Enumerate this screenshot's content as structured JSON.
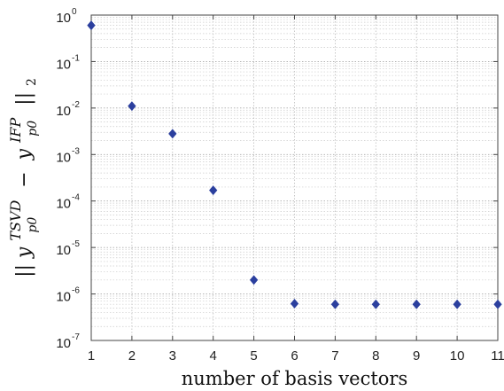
{
  "chart_data": {
    "type": "scatter",
    "x": [
      1,
      2,
      3,
      4,
      5,
      6,
      7,
      8,
      9,
      10,
      11
    ],
    "y": [
      0.6,
      0.011,
      0.0028,
      0.00017,
      2e-06,
      6.2e-07,
      6e-07,
      6e-07,
      6e-07,
      6e-07,
      6e-07
    ],
    "xlabel": "number of basis vectors",
    "ylabel": "||y_{p0}^{TSVD} − y_{p0}^{IFP}||_2",
    "ylabel_parts": {
      "open": "||",
      "y": "y",
      "sup1": "TSVD",
      "sub": "p0",
      "minus": "−",
      "sup2": "IFP",
      "close": "||",
      "norm_sub": "2"
    },
    "xlim": [
      1,
      11
    ],
    "ylim": [
      1e-07,
      1
    ],
    "yscale": "log",
    "x_ticks": [
      "1",
      "2",
      "3",
      "4",
      "5",
      "6",
      "7",
      "8",
      "9",
      "10",
      "11"
    ],
    "y_ticks": [
      {
        "base": "10",
        "exp": "0"
      },
      {
        "base": "10",
        "exp": "-1"
      },
      {
        "base": "10",
        "exp": "-2"
      },
      {
        "base": "10",
        "exp": "-3"
      },
      {
        "base": "10",
        "exp": "-4"
      },
      {
        "base": "10",
        "exp": "-5"
      },
      {
        "base": "10",
        "exp": "-6"
      },
      {
        "base": "10",
        "exp": "-7"
      }
    ],
    "grid": true,
    "marker": "diamond",
    "marker_color": "#2b3f9e"
  }
}
